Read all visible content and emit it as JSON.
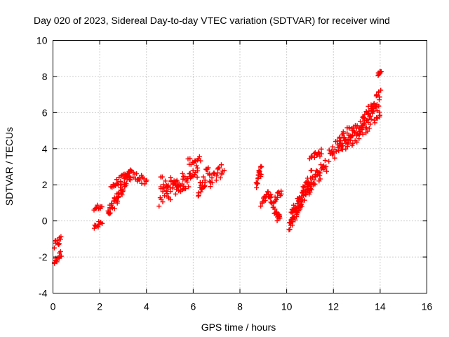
{
  "chart_data": {
    "type": "scatter",
    "title": "Day 020 of 2023, Sidereal Day-to-day VTEC variation (SDTVAR) for receiver wind",
    "xlabel": "GPS time / hours",
    "ylabel": "SDTVAR / TECUs",
    "xlim": [
      0,
      16
    ],
    "ylim": [
      -4,
      10
    ],
    "xticks": [
      0,
      2,
      4,
      6,
      8,
      10,
      12,
      14,
      16
    ],
    "yticks": [
      -4,
      -2,
      0,
      2,
      4,
      6,
      8,
      10
    ],
    "grid": true,
    "marker": "plus",
    "color": "#ff0000",
    "segments": [
      {
        "x0": 0.05,
        "x1": 0.35,
        "y0": -1.4,
        "y1": -1.0,
        "spread": 0.25
      },
      {
        "x0": 0.05,
        "x1": 0.35,
        "y0": -2.3,
        "y1": -1.8,
        "spread": 0.2
      },
      {
        "x0": 1.75,
        "x1": 2.1,
        "y0": 0.7,
        "y1": 0.85,
        "spread": 0.12
      },
      {
        "x0": 1.75,
        "x1": 2.1,
        "y0": -0.4,
        "y1": -0.1,
        "spread": 0.2
      },
      {
        "x0": 2.35,
        "x1": 3.3,
        "y0": 0.3,
        "y1": 2.6,
        "spread": 0.35
      },
      {
        "x0": 2.5,
        "x1": 3.3,
        "y0": 1.9,
        "y1": 2.6,
        "spread": 0.25
      },
      {
        "x0": 3.3,
        "x1": 4.0,
        "y0": 2.6,
        "y1": 2.2,
        "spread": 0.25
      },
      {
        "x0": 4.55,
        "x1": 5.6,
        "y0": 1.2,
        "y1": 2.2,
        "spread": 0.5
      },
      {
        "x0": 4.6,
        "x1": 5.6,
        "y0": 2.2,
        "y1": 2.0,
        "spread": 0.35
      },
      {
        "x0": 5.6,
        "x1": 6.2,
        "y0": 2.0,
        "y1": 2.8,
        "spread": 0.4
      },
      {
        "x0": 5.8,
        "x1": 6.3,
        "y0": 3.3,
        "y1": 3.4,
        "spread": 0.2
      },
      {
        "x0": 6.2,
        "x1": 6.7,
        "y0": 1.7,
        "y1": 2.8,
        "spread": 0.4
      },
      {
        "x0": 6.7,
        "x1": 7.3,
        "y0": 2.2,
        "y1": 2.9,
        "spread": 0.35
      },
      {
        "x0": 8.7,
        "x1": 8.9,
        "y0": 2.0,
        "y1": 2.9,
        "spread": 0.3
      },
      {
        "x0": 8.9,
        "x1": 9.2,
        "y0": 0.9,
        "y1": 1.5,
        "spread": 0.2
      },
      {
        "x0": 9.2,
        "x1": 9.7,
        "y0": 1.6,
        "y1": 0.0,
        "spread": 0.3
      },
      {
        "x0": 9.5,
        "x1": 9.8,
        "y0": 1.3,
        "y1": 1.6,
        "spread": 0.2
      },
      {
        "x0": 10.1,
        "x1": 10.7,
        "y0": -0.3,
        "y1": 1.4,
        "spread": 0.4
      },
      {
        "x0": 10.2,
        "x1": 11.1,
        "y0": 0.2,
        "y1": 2.5,
        "spread": 0.5
      },
      {
        "x0": 10.8,
        "x1": 11.7,
        "y0": 1.6,
        "y1": 3.1,
        "spread": 0.4
      },
      {
        "x0": 11.0,
        "x1": 11.5,
        "y0": 3.5,
        "y1": 3.8,
        "spread": 0.2
      },
      {
        "x0": 11.8,
        "x1": 12.8,
        "y0": 3.6,
        "y1": 5.0,
        "spread": 0.5
      },
      {
        "x0": 12.2,
        "x1": 13.3,
        "y0": 4.1,
        "y1": 5.3,
        "spread": 0.5
      },
      {
        "x0": 12.8,
        "x1": 14.0,
        "y0": 4.6,
        "y1": 6.2,
        "spread": 0.5
      },
      {
        "x0": 13.3,
        "x1": 14.0,
        "y0": 5.6,
        "y1": 7.0,
        "spread": 0.35
      },
      {
        "x0": 13.9,
        "x1": 14.05,
        "y0": 8.1,
        "y1": 8.3,
        "spread": 0.05
      }
    ]
  }
}
